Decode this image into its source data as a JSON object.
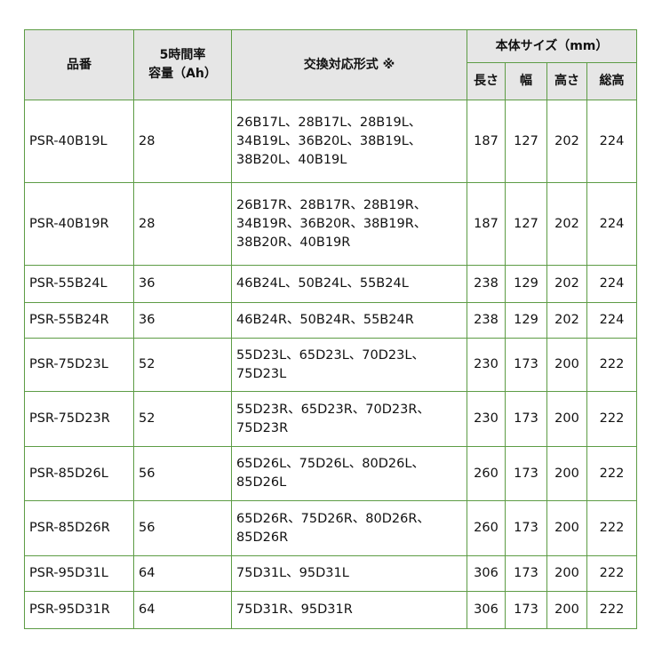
{
  "table": {
    "header": {
      "part": "品番",
      "capacity": [
        "5時間率",
        "容量（Ah）"
      ],
      "compat": "交換対応形式 ※",
      "size": "本体サイズ（mm）",
      "size_cols": [
        "長さ",
        "幅",
        "高さ",
        "総高"
      ]
    },
    "rows": [
      [
        "PSR-40B19L",
        28,
        [
          "26B17L、28B17L、28B19L、",
          "34B19L、36B20L、38B19L、",
          "38B20L、40B19L"
        ],
        187,
        127,
        202,
        224
      ],
      [
        "PSR-40B19R",
        28,
        [
          "26B17R、28B17R、28B19R、",
          "34B19R、36B20R、38B19R、",
          "38B20R、40B19R"
        ],
        187,
        127,
        202,
        224
      ],
      [
        "PSR-55B24L",
        36,
        [
          "46B24L、50B24L、55B24L"
        ],
        238,
        129,
        202,
        224
      ],
      [
        "PSR-55B24R",
        36,
        [
          "46B24R、50B24R、55B24R"
        ],
        238,
        129,
        202,
        224
      ],
      [
        "PSR-75D23L",
        52,
        [
          "55D23L、65D23L、70D23L、",
          "75D23L"
        ],
        230,
        173,
        200,
        222
      ],
      [
        "PSR-75D23R",
        52,
        [
          "55D23R、65D23R、70D23R、",
          "75D23R"
        ],
        230,
        173,
        200,
        222
      ],
      [
        "PSR-85D26L",
        56,
        [
          "65D26L、75D26L、80D26L、",
          "85D26L"
        ],
        260,
        173,
        200,
        222
      ],
      [
        "PSR-85D26R",
        56,
        [
          "65D26R、75D26R、80D26R、",
          "85D26R"
        ],
        260,
        173,
        200,
        222
      ],
      [
        "PSR-95D31L",
        64,
        [
          "75D31L、95D31L"
        ],
        306,
        173,
        200,
        222
      ],
      [
        "PSR-95D31R",
        64,
        [
          "75D31R、95D31R"
        ],
        306,
        173,
        200,
        222
      ]
    ]
  }
}
